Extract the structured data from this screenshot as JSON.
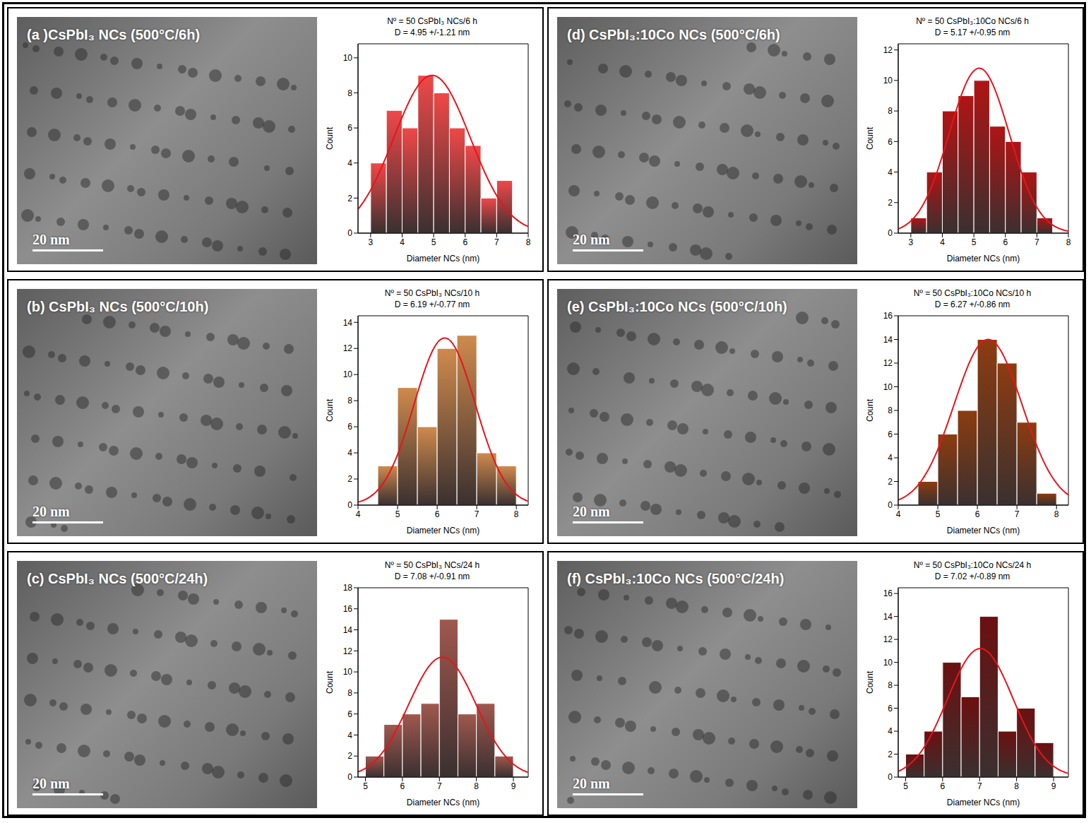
{
  "chart_data": [
    {
      "type": "histogram",
      "title": "(a )CsPbI₃ NCs (500°C/6h)",
      "scale_bar": "20 nm",
      "annotations": [
        "Nº = 50 CsPbI₃ NCs/6 h",
        "D = 4.95 +/-1.21 nm"
      ],
      "x_label": "Diameter NCs (nm)",
      "y_label": "Count",
      "bins": [
        3,
        3.5,
        4,
        4.5,
        5,
        5.5,
        6,
        6.5,
        7,
        7.5
      ],
      "counts": [
        4,
        7,
        6,
        9,
        8,
        6,
        5,
        2,
        3
      ],
      "fit": {
        "mean": 4.95,
        "sd": 1.21,
        "peak": 9
      },
      "color": "#f04848",
      "xlim": [
        2.6,
        8
      ],
      "xticks": [
        3,
        4,
        5,
        6,
        7,
        8
      ],
      "ylim": [
        0,
        10.8
      ],
      "yticks": [
        0,
        2,
        4,
        6,
        8,
        10
      ]
    },
    {
      "type": "histogram",
      "title": "(b) CsPbI₃ NCs (500°C/10h)",
      "scale_bar": "20 nm",
      "annotations": [
        "Nº = 50 CsPbI₃ NCs/10 h",
        "D = 6.19 +/-0.77 nm"
      ],
      "x_label": "Diameter NCs (nm)",
      "y_label": "Count",
      "bins": [
        4.5,
        5,
        5.5,
        6,
        6.5,
        7,
        7.5,
        8
      ],
      "counts": [
        3,
        9,
        6,
        12,
        13,
        4,
        3
      ],
      "fit": {
        "mean": 6.19,
        "sd": 0.77,
        "peak": 12.8
      },
      "color": "#cf8a4c",
      "xlim": [
        4,
        8.3
      ],
      "xticks": [
        4,
        5,
        6,
        7,
        8
      ],
      "ylim": [
        0,
        14.5
      ],
      "yticks": [
        0,
        2,
        4,
        6,
        8,
        10,
        12,
        14
      ]
    },
    {
      "type": "histogram",
      "title": "(c) CsPbI₃ NCs (500°C/24h)",
      "scale_bar": "20 nm",
      "annotations": [
        "Nº = 50 CsPbI₃ NCs/24 h",
        "D = 7.08 +/-0.91 nm"
      ],
      "x_label": "Diameter NCs (nm)",
      "y_label": "Count",
      "bins": [
        5,
        5.5,
        6,
        6.5,
        7,
        7.5,
        8,
        8.5,
        9
      ],
      "counts": [
        2,
        5,
        6,
        7,
        15,
        6,
        7,
        2
      ],
      "fit": {
        "mean": 7.08,
        "sd": 0.91,
        "peak": 11.4
      },
      "color": "#a0584e",
      "xlim": [
        4.8,
        9.4
      ],
      "xticks": [
        5,
        6,
        7,
        8,
        9
      ],
      "ylim": [
        0,
        18
      ],
      "yticks": [
        0,
        2,
        4,
        6,
        8,
        10,
        12,
        14,
        16,
        18
      ]
    },
    {
      "type": "histogram",
      "title": "(d) CsPbI₃:10Co NCs (500°C/6h)",
      "scale_bar": "20 nm",
      "annotations": [
        "Nº = 50 CsPbI₃:10Co NCs/6 h",
        "D = 5.17 +/-0.95 nm"
      ],
      "x_label": "Diameter NCs (nm)",
      "y_label": "Count",
      "bins": [
        3,
        3.5,
        4,
        4.5,
        5,
        5.5,
        6,
        6.5,
        7,
        7.5
      ],
      "counts": [
        1,
        4,
        8,
        9,
        10,
        7,
        6,
        4,
        1
      ],
      "fit": {
        "mean": 5.17,
        "sd": 0.95,
        "peak": 10.8
      },
      "color": "#b01414",
      "xlim": [
        2.6,
        8
      ],
      "xticks": [
        3,
        4,
        5,
        6,
        7,
        8
      ],
      "ylim": [
        0,
        12.4
      ],
      "yticks": [
        0,
        2,
        4,
        6,
        8,
        10,
        12
      ]
    },
    {
      "type": "histogram",
      "title": "(e) CsPbI₃:10Co NCs (500°C/10h)",
      "scale_bar": "20 nm",
      "annotations": [
        "Nº = 50 CsPbI₃:10Co NCs/10 h",
        "D = 6.27 +/-0.86 nm"
      ],
      "x_label": "Diameter NCs (nm)",
      "y_label": "Count",
      "bins": [
        4.5,
        5,
        5.5,
        6,
        6.5,
        7,
        7.5,
        8
      ],
      "counts": [
        2,
        6,
        8,
        14,
        12,
        7,
        1
      ],
      "fit": {
        "mean": 6.27,
        "sd": 0.86,
        "peak": 14
      },
      "color": "#8c3c10",
      "xlim": [
        4,
        8.3
      ],
      "xticks": [
        4,
        5,
        6,
        7,
        8
      ],
      "ylim": [
        0,
        16
      ],
      "yticks": [
        0,
        2,
        4,
        6,
        8,
        10,
        12,
        14,
        16
      ]
    },
    {
      "type": "histogram",
      "title": "(f) CsPbI₃:10Co NCs (500°C/24h)",
      "scale_bar": "20 nm",
      "annotations": [
        "Nº = 50 CsPbI₃:10Co NCs/24 h",
        "D = 7.02 +/-0.89 nm"
      ],
      "x_label": "Diameter NCs (nm)",
      "y_label": "Count",
      "bins": [
        5,
        5.5,
        6,
        6.5,
        7,
        7.5,
        8,
        8.5,
        9
      ],
      "counts": [
        2,
        4,
        10,
        7,
        14,
        4,
        6,
        3
      ],
      "fit": {
        "mean": 7.02,
        "sd": 0.89,
        "peak": 11.2
      },
      "color": "#6c1010",
      "xlim": [
        4.8,
        9.4
      ],
      "xticks": [
        5,
        6,
        7,
        8,
        9
      ],
      "ylim": [
        0,
        16.5
      ],
      "yticks": [
        0,
        2,
        4,
        6,
        8,
        10,
        12,
        14,
        16
      ]
    }
  ]
}
